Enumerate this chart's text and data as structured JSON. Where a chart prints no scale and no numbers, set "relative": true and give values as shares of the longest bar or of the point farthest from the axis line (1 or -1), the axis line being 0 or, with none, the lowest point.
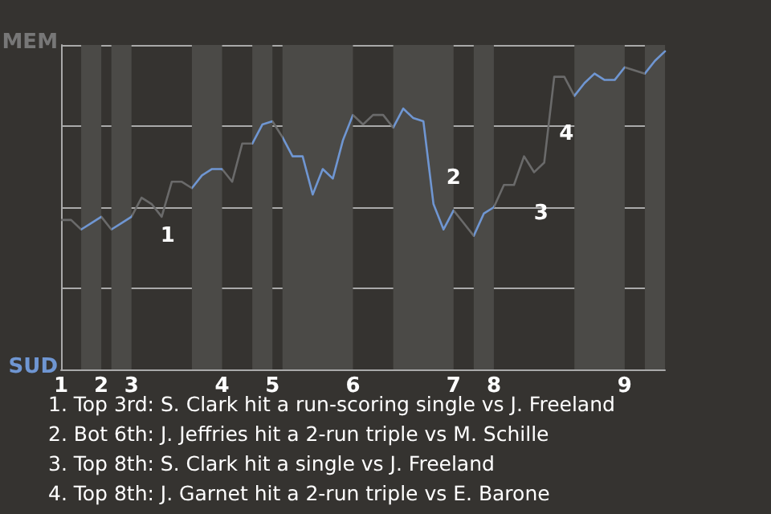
{
  "chart_data": {
    "type": "line",
    "relative": true,
    "categories": [
      "1",
      null,
      null,
      null,
      "2",
      null,
      null,
      "3",
      null,
      null,
      null,
      null,
      null,
      null,
      null,
      null,
      "4",
      null,
      null,
      null,
      null,
      "5",
      null,
      null,
      null,
      null,
      null,
      null,
      null,
      "6",
      null,
      null,
      null,
      null,
      null,
      null,
      null,
      null,
      null,
      "7",
      null,
      null,
      null,
      "8",
      null,
      null,
      null,
      null,
      null,
      null,
      null,
      null,
      null,
      null,
      null,
      null,
      "9",
      null,
      null,
      null,
      null
    ],
    "grid": "y",
    "marker": "none",
    "line_style": "solid",
    "series": [
      {
        "values": [
          0.47,
          0.47,
          0.44,
          0.46,
          0.48,
          0.44,
          0.46,
          0.48,
          0.54,
          0.52,
          0.48,
          0.59,
          0.59,
          0.57,
          0.61,
          0.63,
          0.63,
          0.59,
          0.71,
          0.71,
          0.77,
          0.78,
          0.73,
          0.67,
          0.67,
          0.55,
          0.63,
          0.6,
          0.72,
          0.8,
          0.77,
          0.8,
          0.8,
          0.76,
          0.82,
          0.79,
          0.78,
          0.52,
          0.44,
          0.5,
          0.46,
          0.42,
          0.49,
          0.51,
          0.58,
          0.58,
          0.67,
          0.62,
          0.65,
          0.92,
          0.92,
          0.86,
          0.9,
          0.93,
          0.91,
          0.91,
          0.95,
          0.94,
          0.93,
          0.97,
          1
        ],
        "colors": [
          "#6a6a6a",
          "#6a6a6a",
          "#6f96d2",
          "#6f96d2",
          "#6a6a6a",
          "#6f96d2",
          "#6f96d2",
          "#6a6a6a",
          "#6a6a6a",
          "#6a6a6a",
          "#6a6a6a",
          "#6a6a6a",
          "#6a6a6a",
          "#6f96d2",
          "#6f96d2",
          "#6f96d2",
          "#6a6a6a",
          "#6a6a6a",
          "#6a6a6a",
          "#6f96d2",
          "#6f96d2",
          "#6a6a6a",
          "#6f96d2",
          "#6f96d2",
          "#6f96d2",
          "#6f96d2",
          "#6f96d2",
          "#6f96d2",
          "#6f96d2",
          "#6a6a6a",
          "#6a6a6a",
          "#6a6a6a",
          "#6a6a6a",
          "#6f96d2",
          "#6f96d2",
          "#6f96d2",
          "#6f96d2",
          "#6f96d2",
          "#6f96d2",
          "#6a6a6a",
          "#6a6a6a",
          "#6f96d2",
          "#6f96d2",
          "#6a6a6a",
          "#6a6a6a",
          "#6a6a6a",
          "#6a6a6a",
          "#6a6a6a",
          "#6a6a6a",
          "#6a6a6a",
          "#6a6a6a",
          "#6f96d2",
          "#6f96d2",
          "#6f96d2",
          "#6f96d2",
          "#6f96d2",
          "#6a6a6a",
          "#6a6a6a",
          "#6f96d2",
          "#6f96d2",
          "#6f96d2"
        ]
      }
    ],
    "annotations": [
      "MEM",
      "SUD",
      "1",
      "2",
      "3",
      "4",
      "1. Top 3rd: S. Clark hit a run-scoring single vs J. Freeland",
      "2. Bot 6th: J. Jeffries hit a 2-run triple vs M. Schille",
      "3. Top 8th: S. Clark hit a single vs J. Freeland",
      "4. Top 8th: J. Garnet hit a 2-run triple vs E. Barone"
    ]
  }
}
